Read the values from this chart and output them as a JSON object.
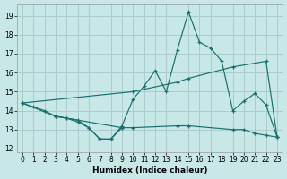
{
  "xlabel": "Humidex (Indice chaleur)",
  "bg_color": "#c8e8e8",
  "grid_color": "#aacccc",
  "line_color": "#1a6e6e",
  "xlim": [
    -0.5,
    23.5
  ],
  "ylim": [
    11.8,
    19.6
  ],
  "yticks": [
    12,
    13,
    14,
    15,
    16,
    17,
    18,
    19
  ],
  "xticks": [
    0,
    1,
    2,
    3,
    4,
    5,
    6,
    7,
    8,
    9,
    10,
    11,
    12,
    13,
    14,
    15,
    16,
    17,
    18,
    19,
    20,
    21,
    22,
    23
  ],
  "series": [
    {
      "x": [
        0,
        1,
        2,
        3,
        4,
        5,
        6,
        7,
        8,
        9,
        10,
        11,
        12,
        13,
        14,
        15,
        16,
        17,
        18,
        19,
        20,
        21,
        22,
        23
      ],
      "y": [
        14.4,
        14.2,
        14.0,
        13.7,
        13.6,
        13.5,
        13.1,
        12.5,
        12.5,
        13.2,
        14.6,
        15.3,
        16.1,
        15.0,
        17.2,
        19.2,
        17.6,
        17.3,
        16.6,
        14.0,
        14.5,
        14.9,
        14.3,
        12.6
      ],
      "linestyle": "-"
    },
    {
      "x": [
        0,
        10,
        14,
        15,
        19,
        22,
        23
      ],
      "y": [
        14.4,
        15.0,
        15.5,
        15.7,
        16.3,
        16.6,
        12.6
      ],
      "linestyle": "-"
    },
    {
      "x": [
        0,
        3,
        9,
        10,
        14,
        15,
        19,
        20,
        21,
        22,
        23
      ],
      "y": [
        14.4,
        13.7,
        13.1,
        13.1,
        13.2,
        13.2,
        13.0,
        13.0,
        12.8,
        12.7,
        12.6
      ],
      "linestyle": "-"
    },
    {
      "x": [
        3,
        4,
        5,
        6,
        7,
        8,
        9
      ],
      "y": [
        13.7,
        13.6,
        13.4,
        13.1,
        12.5,
        12.5,
        13.1
      ],
      "linestyle": "-"
    }
  ]
}
